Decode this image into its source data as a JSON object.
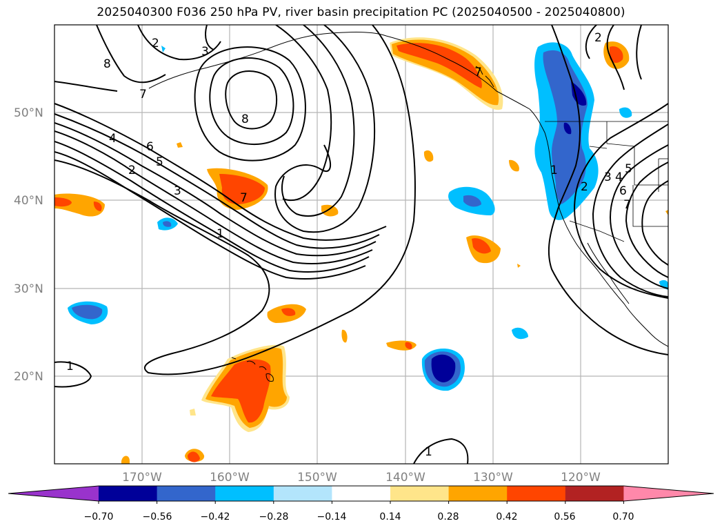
{
  "title": "2025040300 F036 250 hPa PV, river basin precipitation PC (2025040500 - 2025040800)",
  "map": {
    "projection": "PlateCarree",
    "lon_range": [
      -180,
      -110
    ],
    "lat_range": [
      10,
      60
    ],
    "lat_ticks": [
      "50°N",
      "40°N",
      "30°N",
      "20°N"
    ],
    "lon_ticks": [
      "170°W",
      "160°W",
      "150°W",
      "140°W",
      "130°W",
      "120°W"
    ],
    "grid": true,
    "coastline_color": "#000000"
  },
  "contours": {
    "field": "250 hPa PV",
    "labels": [
      "8",
      "7",
      "6",
      "5",
      "4",
      "3",
      "2",
      "1",
      "2",
      "3",
      "7",
      "8",
      "1",
      "1",
      "2",
      "1",
      "3",
      "4",
      "5",
      "6",
      "7",
      "2",
      "7"
    ]
  },
  "colorbar": {
    "ticks": [
      "−0.70",
      "−0.56",
      "−0.42",
      "−0.28",
      "−0.14",
      "0.14",
      "0.28",
      "0.42",
      "0.56",
      "0.70"
    ],
    "colors": [
      "#9933cc",
      "#000099",
      "#3366cc",
      "#00bfff",
      "#b3e5fc",
      "#ffffff",
      "#ffe58a",
      "#ffa500",
      "#ff4500",
      "#b22222",
      "#ff88aa"
    ]
  }
}
